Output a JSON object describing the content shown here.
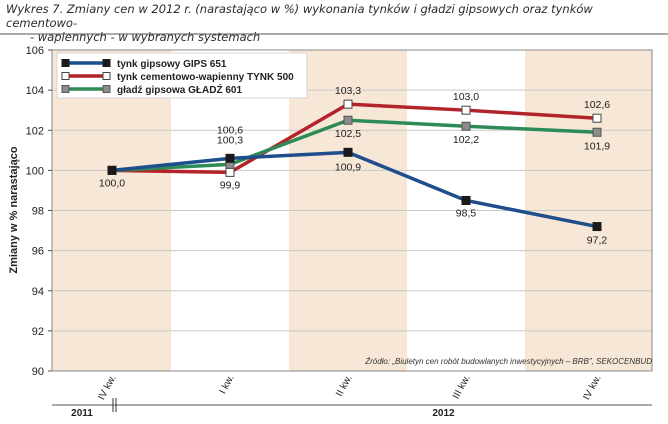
{
  "title_line1": "Wykres 7. Zmiany cen w 2012 r. (narastająco w %) wykonania tynków i gładzi gipsowych oraz tynków cementowo-",
  "title_line2": "- wapiennych - w wybranych systemach",
  "source": "Źródło: „Biuletyn cen robót budowlanych inwestycyjnych – BRB”, SEKOCENBUD",
  "colors": {
    "band": "#f7e7d6",
    "plot_bg": "#ffffff",
    "frame": "#888888"
  },
  "chart_data": {
    "type": "line",
    "ylabel": "Zmiany w % narastająco",
    "xlabel": "",
    "ylim": [
      90,
      106
    ],
    "yticks": [
      90,
      92,
      94,
      96,
      98,
      100,
      102,
      104,
      106
    ],
    "categories": [
      "IV kw.",
      "I kw.",
      "II kw.",
      "III kw.",
      "IV kw."
    ],
    "years": [
      {
        "label": "2011",
        "span": [
          0,
          0
        ]
      },
      {
        "label": "2012",
        "span": [
          1,
          4
        ]
      }
    ],
    "grid": true,
    "legend_position": "top-left",
    "series": [
      {
        "name": "tynk gipsowy GIPS 651",
        "color": "#1f4e8c",
        "marker": "square-filled",
        "values": [
          100.0,
          100.6,
          100.9,
          98.5,
          97.2
        ],
        "labels": [
          "100,0",
          "100,6",
          "100,9",
          "98,5",
          "97,2"
        ]
      },
      {
        "name": "tynk cementowo-wapienny TYNK 500",
        "color": "#b3242a",
        "marker": "square-open",
        "values": [
          100.0,
          99.9,
          103.3,
          103.0,
          102.6
        ],
        "labels": [
          "",
          "99,9",
          "103,3",
          "103,0",
          "102,6"
        ]
      },
      {
        "name": "gładź gipsowa GŁADŹ 601",
        "color": "#2e8b57",
        "marker": "square-gray",
        "values": [
          100.0,
          100.3,
          102.5,
          102.2,
          101.9
        ],
        "labels": [
          "",
          "100,3",
          "102,5",
          "102,2",
          "101,9"
        ]
      }
    ]
  }
}
